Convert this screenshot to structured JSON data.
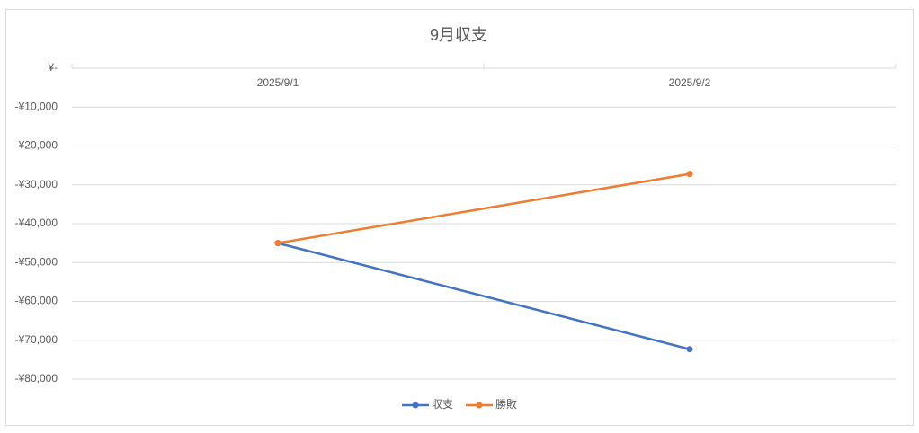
{
  "chart_data": {
    "type": "line",
    "title": "9月収支",
    "categories": [
      "2025/9/1",
      "2025/9/2"
    ],
    "series": [
      {
        "name": "収支",
        "color": "#4472c4",
        "values": [
          -45000,
          -72300
        ]
      },
      {
        "name": "勝敗",
        "color": "#ed7d31",
        "values": [
          -45000,
          -27200
        ]
      }
    ],
    "ylim": [
      -80000,
      0
    ],
    "yticks": [
      {
        "value": 0,
        "label": "¥-"
      },
      {
        "value": -10000,
        "label": "-¥10,000"
      },
      {
        "value": -20000,
        "label": "-¥20,000"
      },
      {
        "value": -30000,
        "label": "-¥30,000"
      },
      {
        "value": -40000,
        "label": "-¥40,000"
      },
      {
        "value": -50000,
        "label": "-¥50,000"
      },
      {
        "value": -60000,
        "label": "-¥60,000"
      },
      {
        "value": -70000,
        "label": "-¥70,000"
      },
      {
        "value": -80000,
        "label": "-¥80,000"
      }
    ],
    "grid": true,
    "legend": "bottom"
  }
}
